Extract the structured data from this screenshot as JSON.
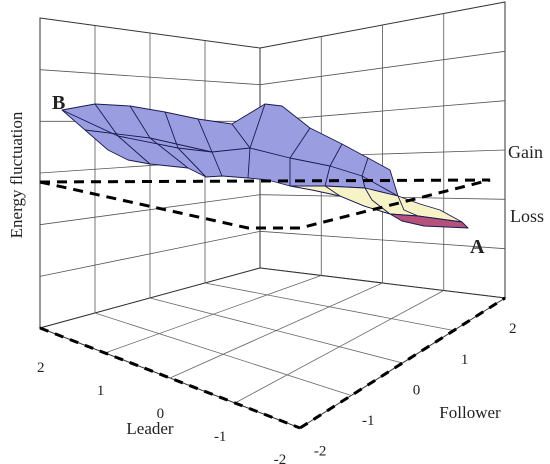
{
  "chart_data": {
    "type": "surface",
    "zlabel": "Energy fluctuation",
    "xlabel": "Leader",
    "ylabel": "Follower",
    "x_ticks": [
      "2",
      "1",
      "0",
      "-1",
      "-2"
    ],
    "y_ticks": [
      "-2",
      "-1",
      "0",
      "1",
      "2"
    ],
    "x_range": [
      -2,
      2
    ],
    "y_range": [
      -2,
      2
    ],
    "zero_plane_annotations": {
      "above": "Gain",
      "below": "Loss"
    },
    "point_labels": [
      {
        "text": "A"
      },
      {
        "text": "B"
      }
    ],
    "colors": {
      "gain_surface": "#9a9ee0",
      "loss_surface": "#f6f3c6",
      "loss_deep": "#b5527b",
      "zero_plane": "#000000"
    },
    "grid": true
  }
}
